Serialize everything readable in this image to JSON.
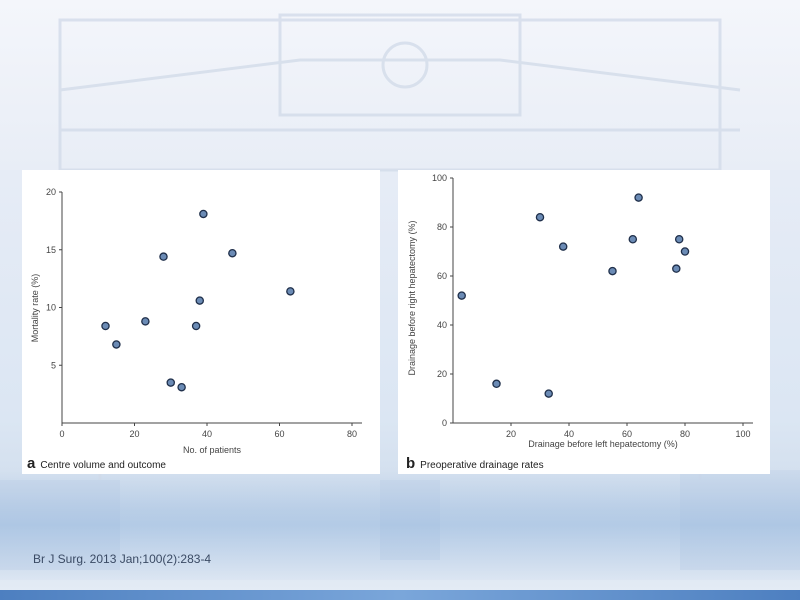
{
  "citation": "Br J Surg. 2013 Jan;100(2):283-4",
  "colors": {
    "point_fill": "#6b8bb5",
    "point_stroke": "#1f2f4a",
    "axis": "#444444"
  },
  "chart_data": [
    {
      "type": "scatter",
      "panel_letter": "a",
      "caption": "Centre volume and outcome",
      "xlabel": "No. of patients",
      "ylabel": "Mortality rate (%)",
      "xlim": [
        0,
        80
      ],
      "ylim": [
        0,
        20
      ],
      "xticks": [
        0,
        20,
        40,
        60,
        80
      ],
      "yticks": [
        5,
        10,
        15,
        20
      ],
      "grid": false,
      "points": [
        {
          "x": 12,
          "y": 8.4
        },
        {
          "x": 15,
          "y": 6.8
        },
        {
          "x": 23,
          "y": 8.8
        },
        {
          "x": 28,
          "y": 14.4
        },
        {
          "x": 30,
          "y": 3.5
        },
        {
          "x": 33,
          "y": 3.1
        },
        {
          "x": 37,
          "y": 8.4
        },
        {
          "x": 38,
          "y": 10.6
        },
        {
          "x": 39,
          "y": 18.1
        },
        {
          "x": 47,
          "y": 14.7
        },
        {
          "x": 63,
          "y": 11.4
        }
      ]
    },
    {
      "type": "scatter",
      "panel_letter": "b",
      "caption": "Preoperative drainage rates",
      "xlabel": "Drainage before left hepatectomy (%)",
      "ylabel": "Drainage before right hepatectomy (%)",
      "xlim": [
        0,
        100
      ],
      "ylim": [
        0,
        100
      ],
      "xticks": [
        20,
        40,
        60,
        80,
        100
      ],
      "yticks": [
        0,
        20,
        40,
        60,
        80,
        100
      ],
      "grid": false,
      "points": [
        {
          "x": 3,
          "y": 52
        },
        {
          "x": 15,
          "y": 16
        },
        {
          "x": 30,
          "y": 84
        },
        {
          "x": 33,
          "y": 12
        },
        {
          "x": 38,
          "y": 72
        },
        {
          "x": 55,
          "y": 62
        },
        {
          "x": 62,
          "y": 75
        },
        {
          "x": 64,
          "y": 92
        },
        {
          "x": 77,
          "y": 63
        },
        {
          "x": 78,
          "y": 75
        },
        {
          "x": 80,
          "y": 70
        }
      ]
    }
  ]
}
